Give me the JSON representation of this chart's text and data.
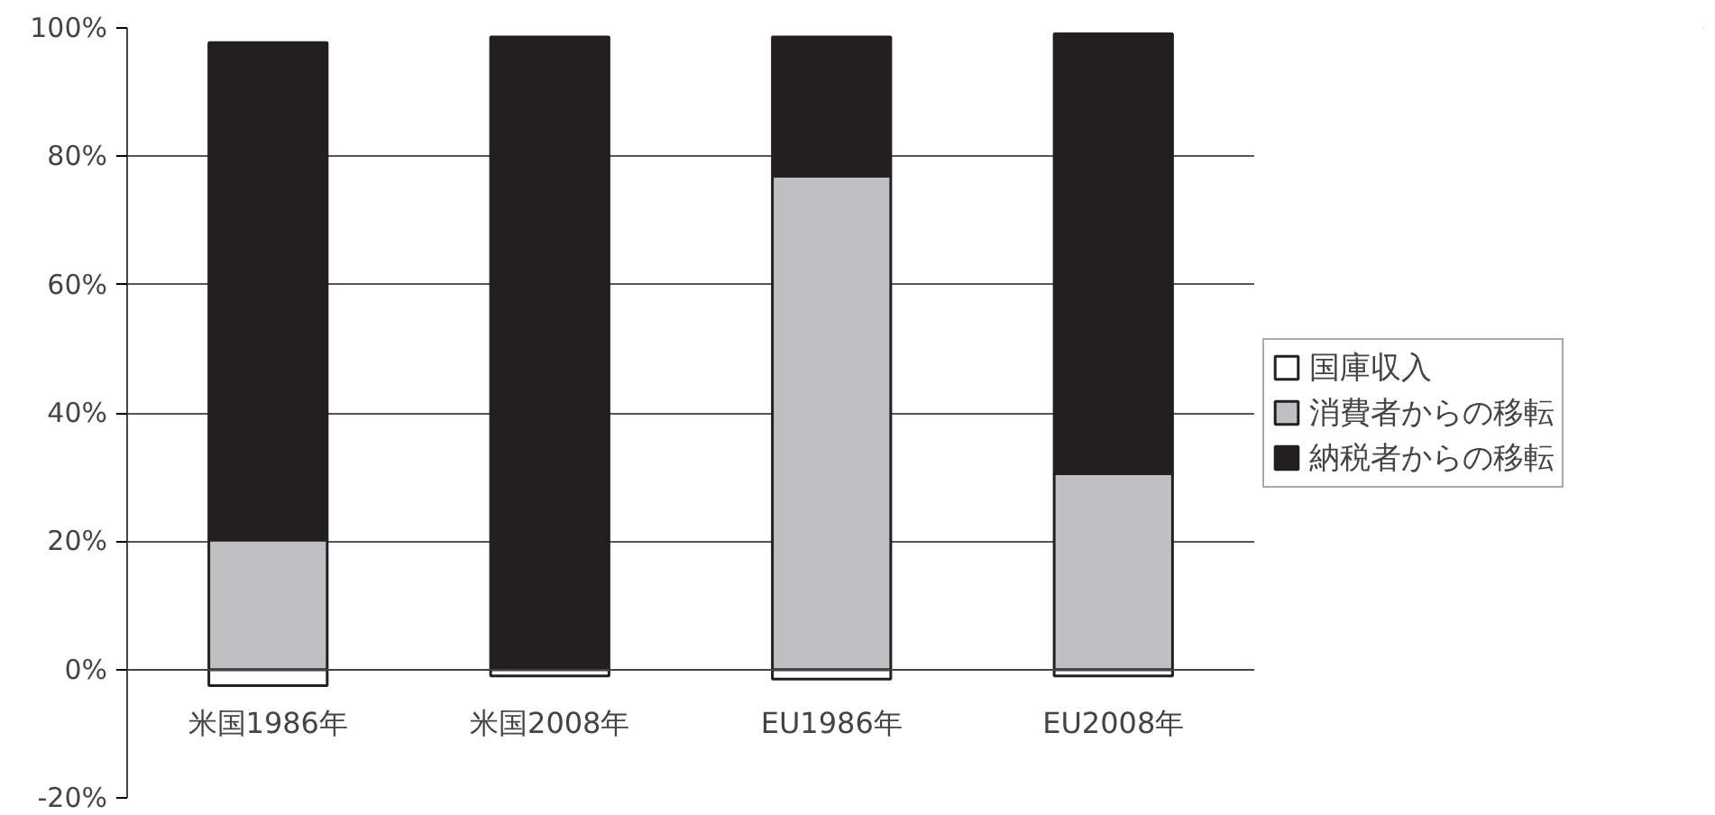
{
  "chart_data": {
    "type": "bar",
    "stacked": true,
    "categories": [
      "米国1986年",
      "米国2008年",
      "EU1986年",
      "EU2008年"
    ],
    "series": [
      {
        "name": "国庫収入",
        "color": "#ffffff",
        "values": [
          -2.5,
          -1,
          -1.5,
          -1
        ]
      },
      {
        "name": "消費者からの移転",
        "color": "#c0c0c4",
        "values": [
          20.2,
          null,
          76.9,
          30.5
        ]
      },
      {
        "name": "納税者からの移転",
        "color": "#231f20",
        "values": [
          77.5,
          98.6,
          21.7,
          68.6
        ]
      }
    ],
    "ylim": [
      -20,
      100
    ],
    "yticks": [
      {
        "value": -20,
        "label": "-20%"
      },
      {
        "value": 0,
        "label": "0%"
      },
      {
        "value": 20,
        "label": "20%"
      },
      {
        "value": 40,
        "label": "40%"
      },
      {
        "value": 60,
        "label": "60%"
      },
      {
        "value": 80,
        "label": "80%"
      },
      {
        "value": 100,
        "label": "100%"
      }
    ],
    "grid": "y",
    "legend": "right"
  }
}
